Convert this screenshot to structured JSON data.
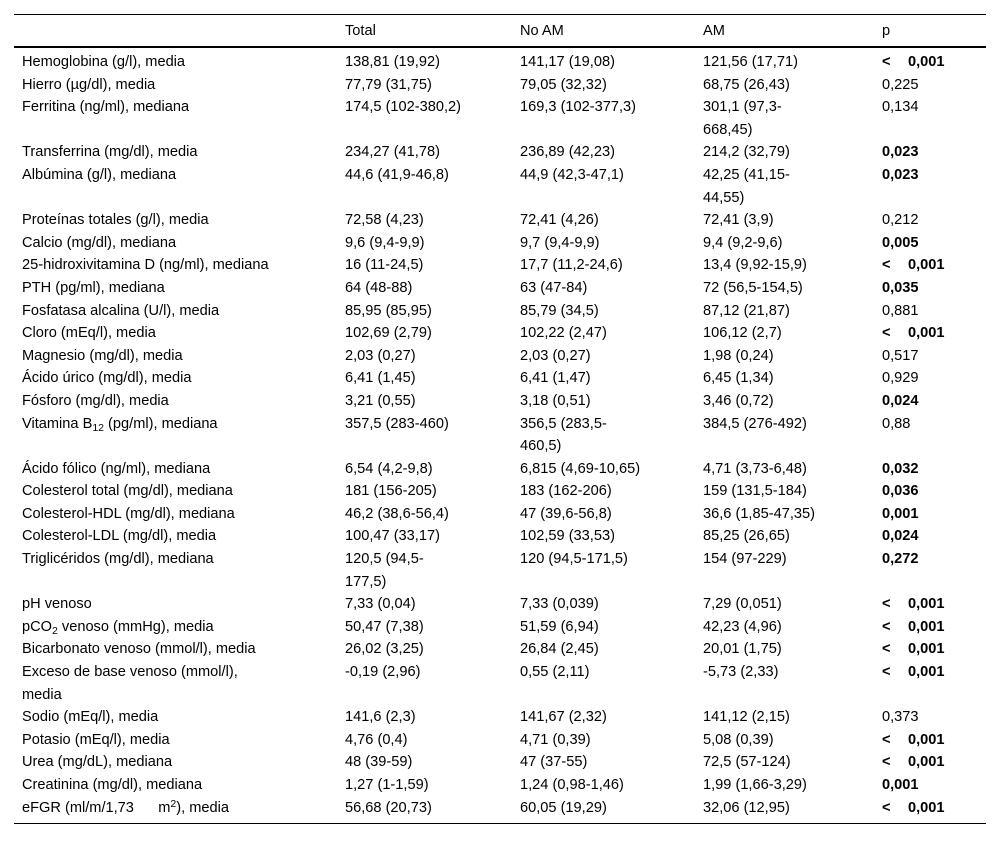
{
  "table": {
    "less_than_symbol": "<",
    "columns": [
      "",
      "Total",
      "No AM",
      "AM",
      "p"
    ],
    "rows": [
      {
        "label": "Hemoglobina (g/l), media",
        "total": "138,81 (19,92)",
        "no_am": "141,17 (19,08)",
        "am": "121,56 (17,71)",
        "p": "0,001",
        "p_lt": true,
        "p_bold": true
      },
      {
        "label": "Hierro (µg/dl), media",
        "total": "77,79 (31,75)",
        "no_am": "79,05 (32,32)",
        "am": "68,75 (26,43)",
        "p": "0,225",
        "p_lt": false,
        "p_bold": false
      },
      {
        "label": "Ferritina (ng/ml), mediana",
        "total": "174,5 (102-380,2)",
        "no_am": "169,3 (102-377,3)",
        "am": "301,1 (97,3-\n668,45)",
        "p": "0,134",
        "p_lt": false,
        "p_bold": false
      },
      {
        "label": "Transferrina (mg/dl), media",
        "total": "234,27 (41,78)",
        "no_am": "236,89 (42,23)",
        "am": "214,2 (32,79)",
        "p": "0,023",
        "p_lt": false,
        "p_bold": true
      },
      {
        "label": "Albúmina (g/l), mediana",
        "total": "44,6 (41,9-46,8)",
        "no_am": "44,9 (42,3-47,1)",
        "am": "42,25 (41,15-\n44,55)",
        "p": "0,023",
        "p_lt": false,
        "p_bold": true
      },
      {
        "label": "Proteínas totales (g/l), media",
        "total": "72,58 (4,23)",
        "no_am": "72,41 (4,26)",
        "am": "72,41 (3,9)",
        "p": "0,212",
        "p_lt": false,
        "p_bold": false
      },
      {
        "label": "Calcio (mg/dl), mediana",
        "total": "9,6 (9,4-9,9)",
        "no_am": "9,7 (9,4-9,9)",
        "am": "9,4 (9,2-9,6)",
        "p": "0,005",
        "p_lt": false,
        "p_bold": true
      },
      {
        "label": "25-hidroxivitamina D (ng/ml), mediana",
        "total": "16 (11-24,5)",
        "no_am": "17,7 (11,2-24,6)",
        "am": "13,4 (9,92-15,9)",
        "p": "0,001",
        "p_lt": true,
        "p_bold": true
      },
      {
        "label": "PTH (pg/ml), mediana",
        "total": "64 (48-88)",
        "no_am": "63 (47-84)",
        "am": "72 (56,5-154,5)",
        "p": "0,035",
        "p_lt": false,
        "p_bold": true
      },
      {
        "label": "Fosfatasa alcalina (U/l), media",
        "total": "85,95 (85,95)",
        "no_am": "85,79 (34,5)",
        "am": "87,12 (21,87)",
        "p": "0,881",
        "p_lt": false,
        "p_bold": false
      },
      {
        "label": "Cloro (mEq/l), media",
        "total": "102,69 (2,79)",
        "no_am": "102,22 (2,47)",
        "am": "106,12 (2,7)",
        "p": "0,001",
        "p_lt": true,
        "p_bold": true
      },
      {
        "label": "Magnesio (mg/dl), media",
        "total": "2,03 (0,27)",
        "no_am": "2,03 (0,27)",
        "am": "1,98 (0,24)",
        "p": "0,517",
        "p_lt": false,
        "p_bold": false
      },
      {
        "label": "Ácido úrico (mg/dl), media",
        "total": "6,41 (1,45)",
        "no_am": "6,41 (1,47)",
        "am": "6,45 (1,34)",
        "p": "0,929",
        "p_lt": false,
        "p_bold": false
      },
      {
        "label": "Fósforo (mg/dl), media",
        "total": "3,21 (0,55)",
        "no_am": "3,18 (0,51)",
        "am": "3,46 (0,72)",
        "p": "0,024",
        "p_lt": false,
        "p_bold": true
      },
      {
        "label": "Vitamina B~12~ (pg/ml), mediana",
        "total": "357,5 (283-460)",
        "no_am": "356,5 (283,5-\n460,5)",
        "am": "384,5 (276-492)",
        "p": "0,88",
        "p_lt": false,
        "p_bold": false
      },
      {
        "label": "Ácido fólico (ng/ml), mediana",
        "total": "6,54 (4,2-9,8)",
        "no_am": "6,815 (4,69-10,65)",
        "am": "4,71 (3,73-6,48)",
        "p": "0,032",
        "p_lt": false,
        "p_bold": true
      },
      {
        "label": "Colesterol total (mg/dl), mediana",
        "total": "181 (156-205)",
        "no_am": "183 (162-206)",
        "am": "159 (131,5-184)",
        "p": "0,036",
        "p_lt": false,
        "p_bold": true
      },
      {
        "label": "Colesterol-HDL (mg/dl), mediana",
        "total": "46,2 (38,6-56,4)",
        "no_am": "47 (39,6-56,8)",
        "am": "36,6 (1,85-47,35)",
        "p": "0,001",
        "p_lt": false,
        "p_bold": true
      },
      {
        "label": "Colesterol-LDL (mg/dl), media",
        "total": "100,47 (33,17)",
        "no_am": "102,59 (33,53)",
        "am": "85,25 (26,65)",
        "p": "0,024",
        "p_lt": false,
        "p_bold": true
      },
      {
        "label": "Triglicéridos (mg/dl), mediana",
        "total": "120,5 (94,5-\n177,5)",
        "no_am": "120 (94,5-171,5)",
        "am": "154 (97-229)",
        "p": "0,272",
        "p_lt": false,
        "p_bold": true
      },
      {
        "label": "pH venoso",
        "total": "7,33 (0,04)",
        "no_am": "7,33 (0,039)",
        "am": "7,29 (0,051)",
        "p": "0,001",
        "p_lt": true,
        "p_bold": true
      },
      {
        "label": "pCO~2~ venoso (mmHg), media",
        "total": "50,47 (7,38)",
        "no_am": "51,59 (6,94)",
        "am": "42,23 (4,96)",
        "p": "0,001",
        "p_lt": true,
        "p_bold": true
      },
      {
        "label": "Bicarbonato venoso (mmol/l), media",
        "total": "26,02 (3,25)",
        "no_am": "26,84 (2,45)",
        "am": "20,01 (1,75)",
        "p": "0,001",
        "p_lt": true,
        "p_bold": true
      },
      {
        "label": "Exceso de base venoso (mmol/l),\nmedia",
        "total": "-0,19 (2,96)",
        "no_am": "0,55 (2,11)",
        "am": "-5,73 (2,33)",
        "p": "0,001",
        "p_lt": true,
        "p_bold": true
      },
      {
        "label": "Sodio (mEq/l), media",
        "total": "141,6 (2,3)",
        "no_am": "141,67 (2,32)",
        "am": "141,12 (2,15)",
        "p": "0,373",
        "p_lt": false,
        "p_bold": false
      },
      {
        "label": "Potasio (mEq/l), media",
        "total": "4,76 (0,4)",
        "no_am": "4,71 (0,39)",
        "am": "5,08 (0,39)",
        "p": "0,001",
        "p_lt": true,
        "p_bold": true
      },
      {
        "label": "Urea (mg/dL), mediana",
        "total": "48 (39-59)",
        "no_am": "47 (37-55)",
        "am": "72,5 (57-124)",
        "p": "0,001",
        "p_lt": true,
        "p_bold": true
      },
      {
        "label": "Creatinina (mg/dl), mediana",
        "total": "1,27 (1-1,59)",
        "no_am": "1,24 (0,98-1,46)",
        "am": "1,99 (1,66-3,29)",
        "p": "0,001",
        "p_lt": false,
        "p_bold": true
      },
      {
        "label": "eFGR (ml/m/1,73      m^2^), media",
        "total": "56,68 (20,73)",
        "no_am": "60,05 (19,29)",
        "am": "32,06 (12,95)",
        "p": "0,001",
        "p_lt": true,
        "p_bold": true
      }
    ]
  }
}
